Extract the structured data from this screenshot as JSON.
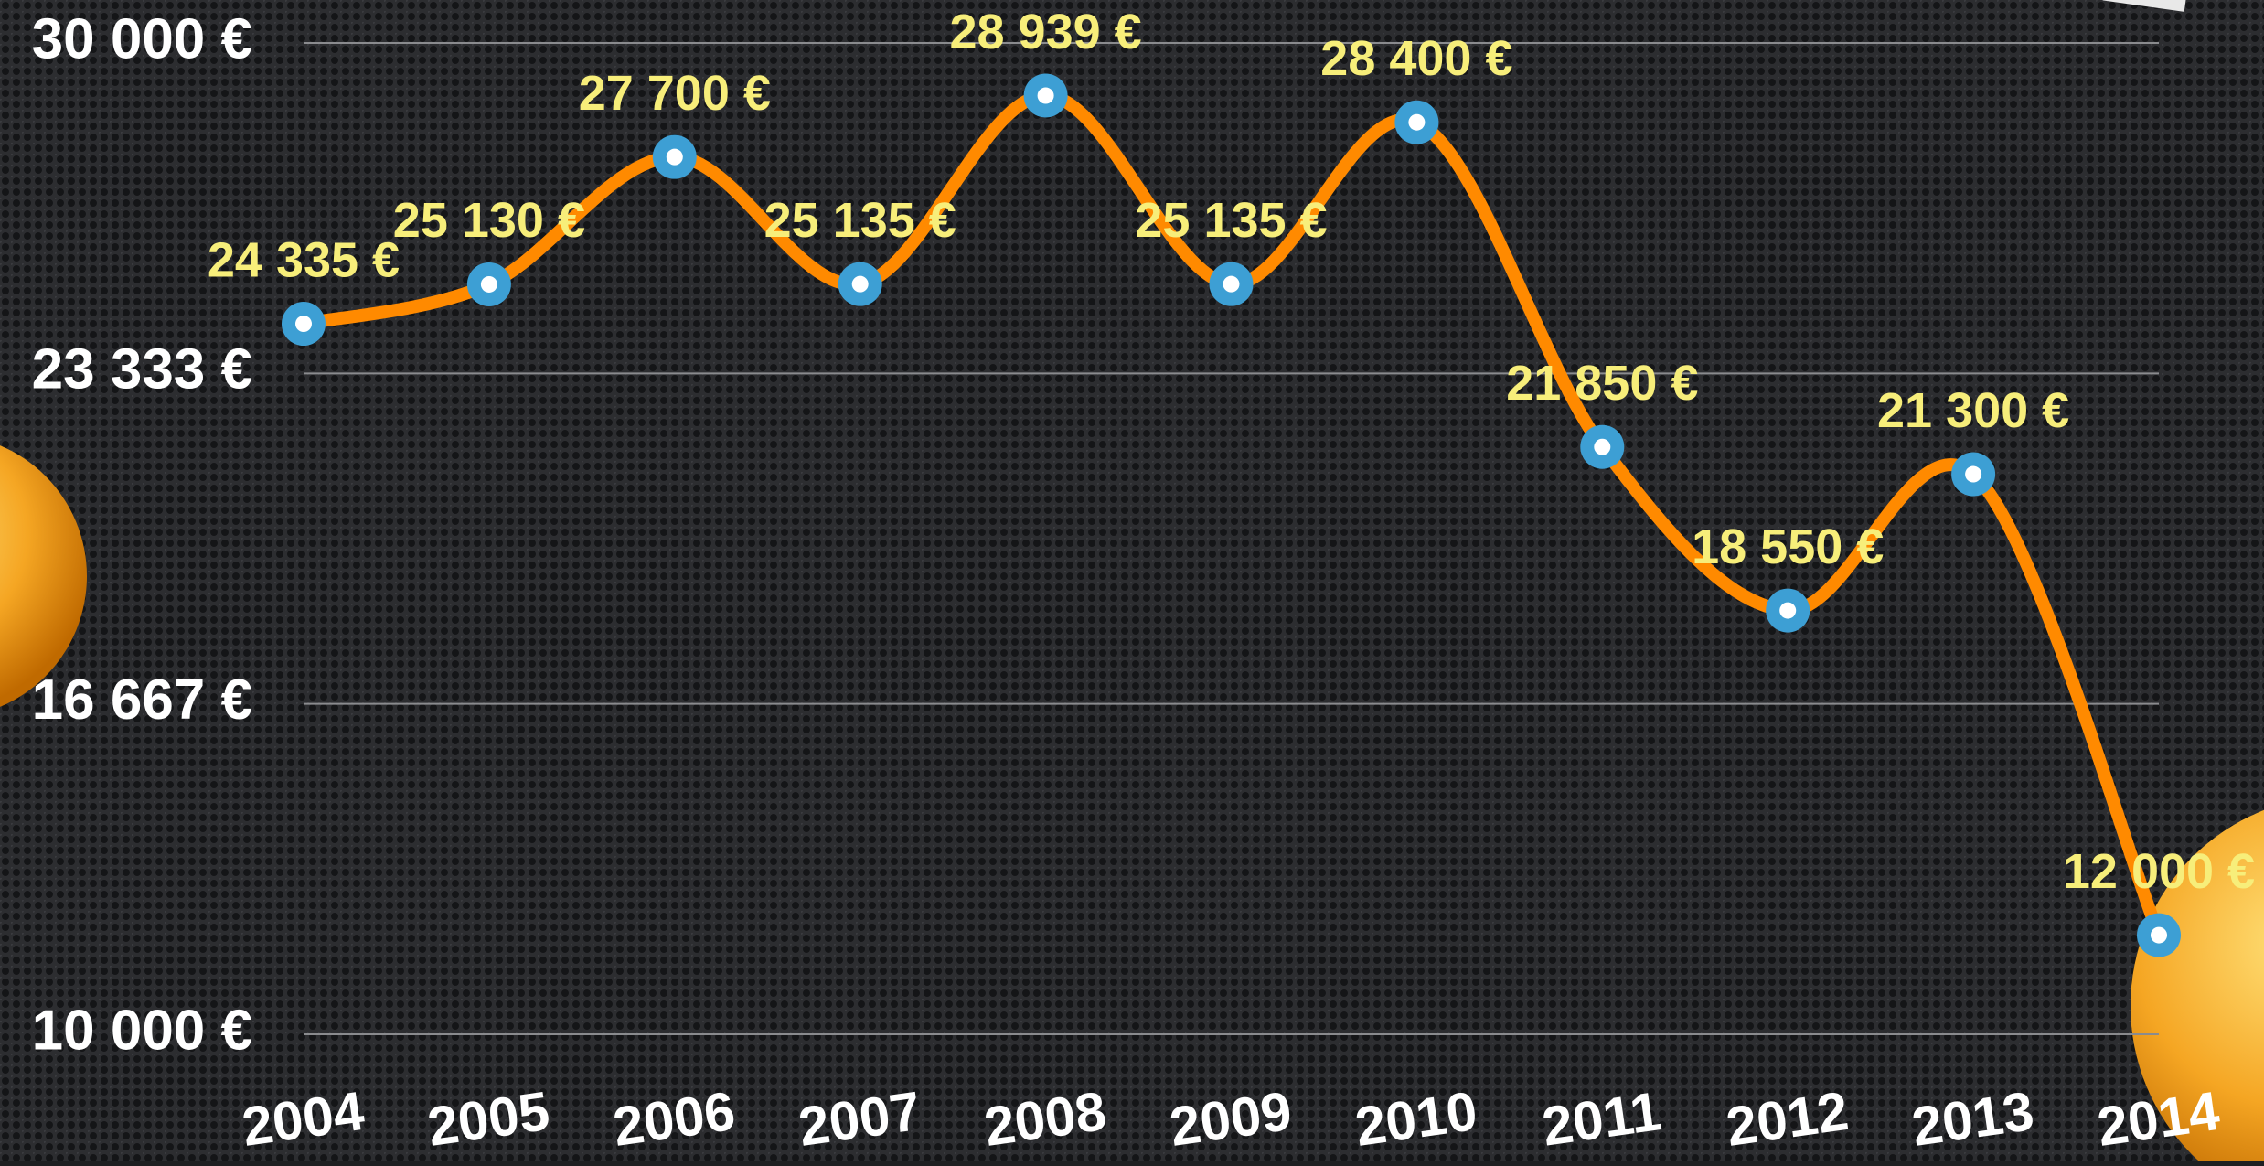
{
  "chart_data": {
    "type": "line",
    "categories": [
      "2004",
      "2005",
      "2006",
      "2007",
      "2008",
      "2009",
      "2010",
      "2011",
      "2012",
      "2013",
      "2014"
    ],
    "values": [
      24335,
      25130,
      27700,
      25135,
      28939,
      25135,
      28400,
      21850,
      18550,
      21300,
      12000
    ],
    "value_labels": [
      "24 335 €",
      "25 130 €",
      "27 700 €",
      "25 135 €",
      "28 939 €",
      "25 135 €",
      "28 400 €",
      "21 850 €",
      "18 550 €",
      "21 300 €",
      "12 000 €"
    ],
    "color": "#ff8a00",
    "marker_color": "#3d9fd4",
    "ylim": [
      10000,
      30000
    ],
    "yticks": [
      {
        "value": 10000,
        "label": "10 000 €"
      },
      {
        "value": 16667,
        "label": "16 667 €"
      },
      {
        "value": 23333,
        "label": "23 333 €"
      },
      {
        "value": 30000,
        "label": "30 000 €"
      }
    ],
    "grid": true
  }
}
